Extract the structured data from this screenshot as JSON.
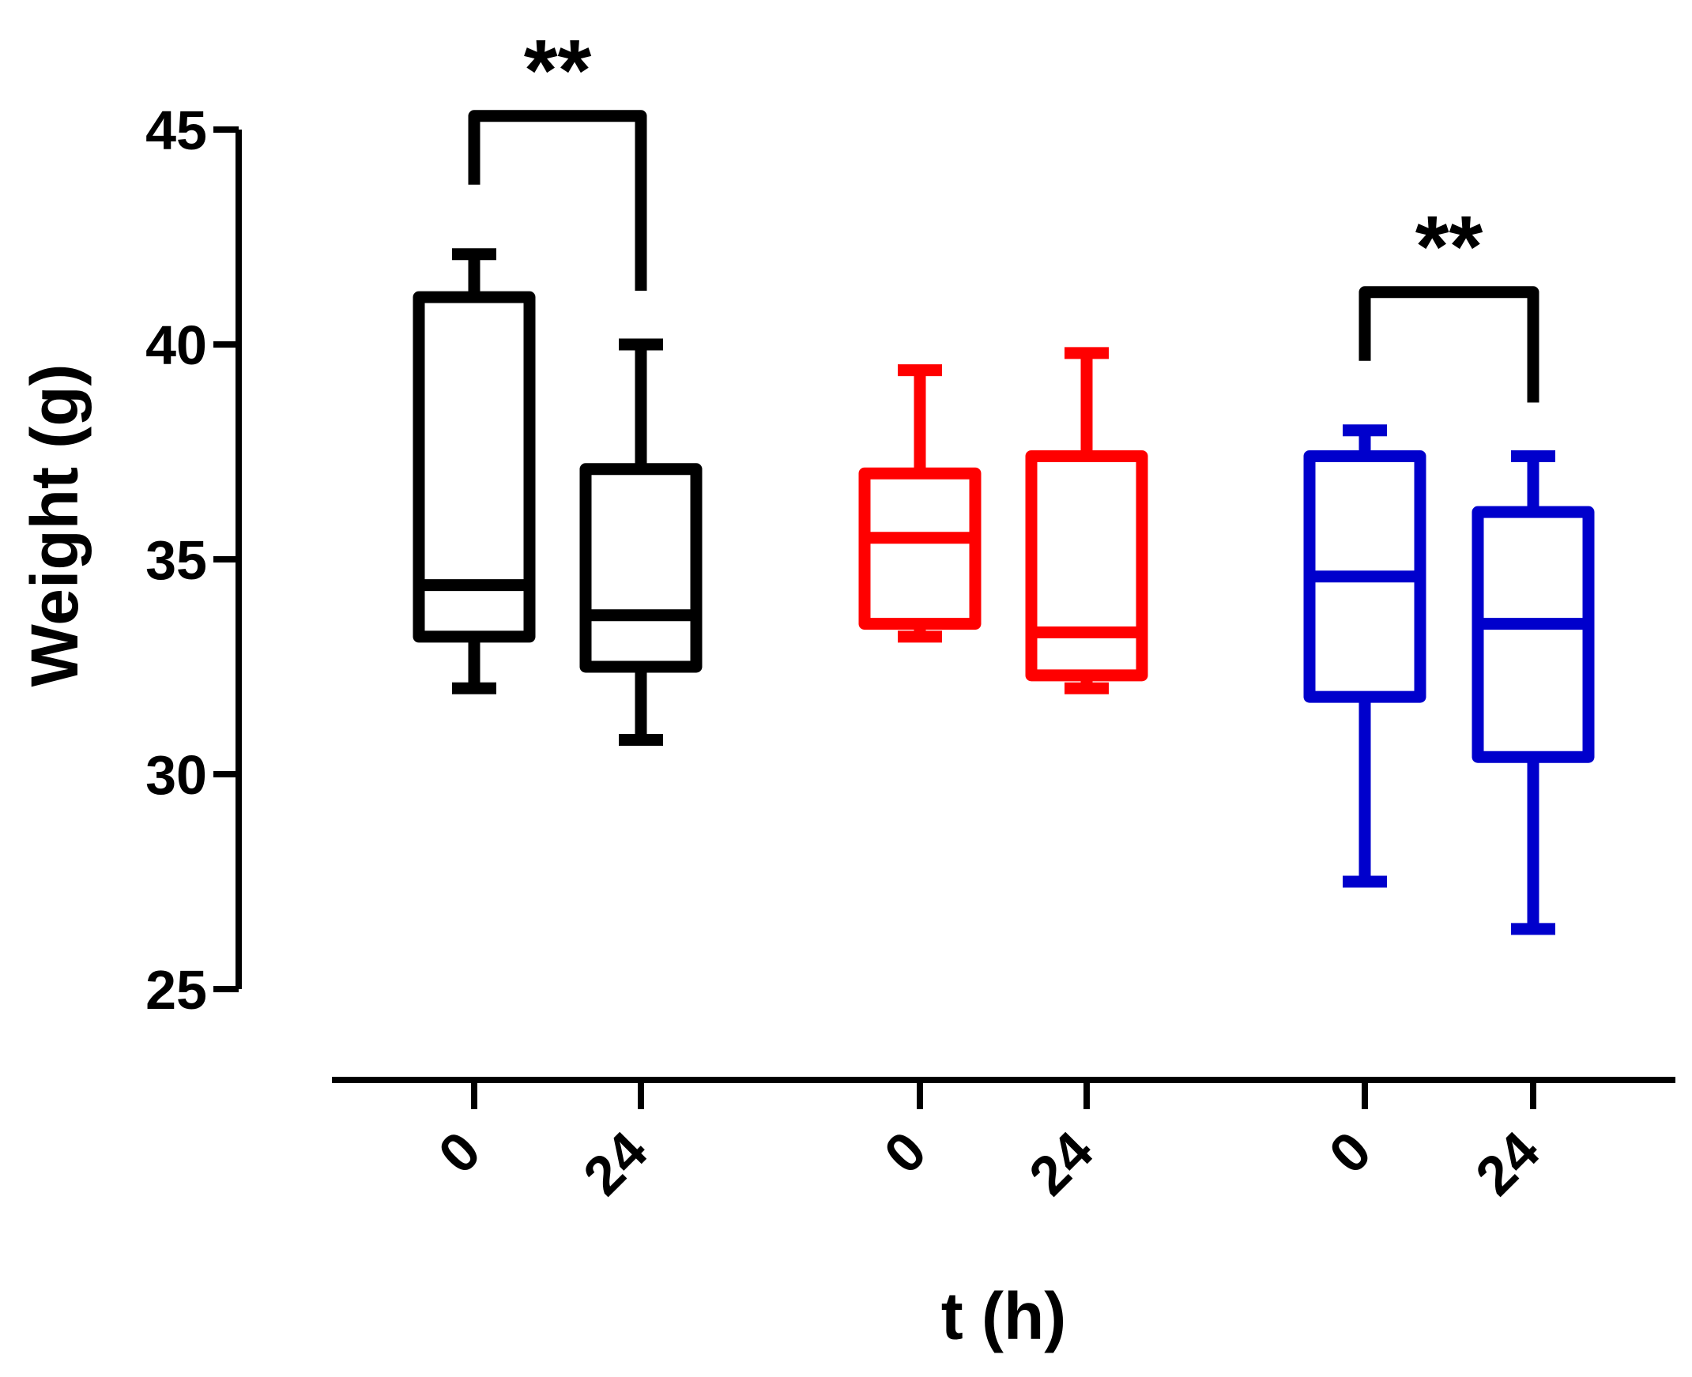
{
  "chart_data": {
    "type": "box",
    "title": "",
    "xlabel": "t (h)",
    "ylabel": "Weight (g)",
    "ylim": [
      25,
      45
    ],
    "yticks": [
      25,
      30,
      35,
      40,
      45
    ],
    "grid": false,
    "legend": "none",
    "categories": [
      "0",
      "24",
      "0",
      "24",
      "0",
      "24"
    ],
    "boxes": [
      {
        "group": 1,
        "category": "0",
        "color": "#000000",
        "min": 32.0,
        "q1": 33.2,
        "median": 34.4,
        "q3": 41.1,
        "max": 42.1
      },
      {
        "group": 1,
        "category": "24",
        "color": "#000000",
        "min": 30.8,
        "q1": 32.5,
        "median": 33.7,
        "q3": 37.1,
        "max": 40.0
      },
      {
        "group": 2,
        "category": "0",
        "color": "#ff0000",
        "min": 33.2,
        "q1": 33.5,
        "median": 35.5,
        "q3": 37.0,
        "max": 39.4
      },
      {
        "group": 2,
        "category": "24",
        "color": "#ff0000",
        "min": 32.0,
        "q1": 32.3,
        "median": 33.3,
        "q3": 37.4,
        "max": 39.8
      },
      {
        "group": 3,
        "category": "0",
        "color": "#0000cc",
        "min": 27.5,
        "q1": 31.8,
        "median": 34.6,
        "q3": 37.4,
        "max": 38.0
      },
      {
        "group": 3,
        "category": "24",
        "color": "#0000cc",
        "min": 26.4,
        "q1": 30.4,
        "median": 33.5,
        "q3": 36.1,
        "max": 37.4
      }
    ],
    "annotations": [
      {
        "label": "**",
        "from_box": 0,
        "to_box": 1
      },
      {
        "label": "**",
        "from_box": 4,
        "to_box": 5
      }
    ]
  }
}
